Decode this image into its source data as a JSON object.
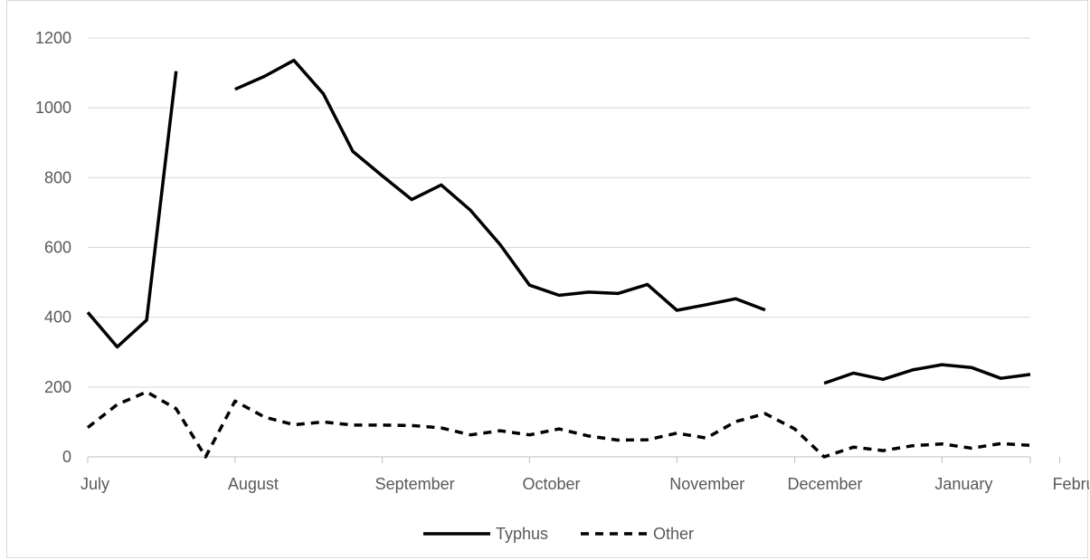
{
  "chart_data": {
    "type": "line",
    "title": "",
    "xlabel": "",
    "ylabel": "",
    "ylim": [
      0,
      1200
    ],
    "yticks": [
      "0",
      "200",
      "400",
      "600",
      "800",
      "1000",
      "1200"
    ],
    "x_tick_labels": [
      "July",
      "August",
      "September",
      "October",
      "November",
      "December",
      "January",
      "February"
    ],
    "x_tick_index": [
      0,
      5,
      10,
      15,
      20,
      24,
      29,
      33
    ],
    "n_points": 33,
    "grid": true,
    "legend_position": "bottom",
    "series": [
      {
        "name": "Typhus",
        "style": "solid",
        "color": "#000000",
        "values": [
          414,
          315,
          392,
          1105,
          null,
          1053,
          1090,
          1136,
          1040,
          875,
          805,
          737,
          779,
          706,
          608,
          492,
          463,
          472,
          468,
          494,
          420,
          436,
          453,
          421,
          null,
          211,
          240,
          222,
          249,
          264,
          256,
          225,
          236
        ]
      },
      {
        "name": "Other",
        "style": "dashed",
        "color": "#000000",
        "values": [
          84,
          150,
          186,
          138,
          0,
          160,
          114,
          92,
          100,
          91,
          91,
          90,
          83,
          63,
          75,
          63,
          80,
          60,
          48,
          49,
          68,
          54,
          101,
          124,
          80,
          0,
          28,
          18,
          32,
          37,
          25,
          38,
          33
        ]
      }
    ]
  }
}
